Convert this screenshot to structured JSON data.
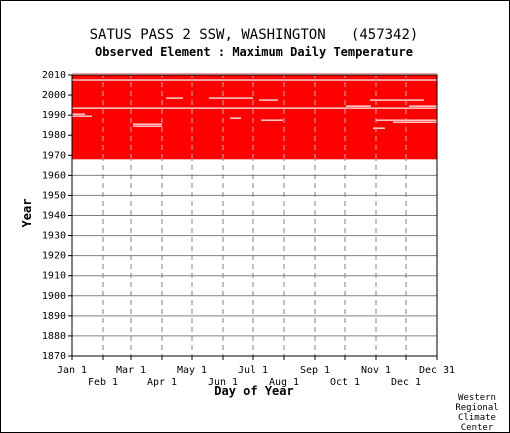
{
  "chart_data": {
    "type": "heatmap",
    "title": "SATUS PASS 2 SSW, WASHINGTON   (457342)",
    "subtitle": "Observed Element : Maximum Daily Temperature",
    "xlabel": "Day of Year",
    "ylabel": "Year",
    "x_range": [
      1,
      366
    ],
    "ylim": [
      1870,
      2010
    ],
    "y_ticks": [
      2010,
      2000,
      1990,
      1980,
      1970,
      1960,
      1950,
      1940,
      1930,
      1920,
      1910,
      1900,
      1890,
      1880,
      1870
    ],
    "x_ticks_top_row": [
      {
        "label": "Jan 1",
        "day": 1
      },
      {
        "label": "Mar 1",
        "day": 60
      },
      {
        "label": "May 1",
        "day": 121
      },
      {
        "label": "Jul 1",
        "day": 182
      },
      {
        "label": "Sep 1",
        "day": 244
      },
      {
        "label": "Nov 1",
        "day": 305
      },
      {
        "label": "Dec 31",
        "day": 366
      }
    ],
    "x_ticks_bottom_row": [
      {
        "label": "Feb 1",
        "day": 32
      },
      {
        "label": "Apr 1",
        "day": 91
      },
      {
        "label": "Jun 1",
        "day": 152
      },
      {
        "label": "Aug 1",
        "day": 213
      },
      {
        "label": "Oct 1",
        "day": 274
      },
      {
        "label": "Dec 1",
        "day": 335
      }
    ],
    "data_coverage": {
      "first_year": 1968,
      "last_year": 2010,
      "fill_color": "#ff0000",
      "missing_color": "#ffffff",
      "missing_segments": [
        {
          "year": 2010,
          "start_day": 1,
          "end_day": 366
        },
        {
          "year": 2007,
          "start_day": 1,
          "end_day": 366
        },
        {
          "year": 1993,
          "start_day": 1,
          "end_day": 366
        },
        {
          "year": 1998,
          "start_day": 95,
          "end_day": 112
        },
        {
          "year": 1998,
          "start_day": 138,
          "end_day": 182
        },
        {
          "year": 1997,
          "start_day": 188,
          "end_day": 207
        },
        {
          "year": 1997,
          "start_day": 299,
          "end_day": 353
        },
        {
          "year": 1994,
          "start_day": 275,
          "end_day": 300
        },
        {
          "year": 1994,
          "start_day": 338,
          "end_day": 366
        },
        {
          "year": 1990,
          "start_day": 1,
          "end_day": 14
        },
        {
          "year": 1989,
          "start_day": 1,
          "end_day": 21
        },
        {
          "year": 1988,
          "start_day": 159,
          "end_day": 170
        },
        {
          "year": 1987,
          "start_day": 305,
          "end_day": 366
        },
        {
          "year": 1987,
          "start_day": 190,
          "end_day": 212
        },
        {
          "year": 1986,
          "start_day": 322,
          "end_day": 366
        },
        {
          "year": 1985,
          "start_day": 62,
          "end_day": 91
        },
        {
          "year": 1984,
          "start_day": 62,
          "end_day": 91
        },
        {
          "year": 1983,
          "start_day": 302,
          "end_day": 314
        }
      ]
    },
    "grid": true
  },
  "credit": [
    "Western",
    "Regional",
    "Climate",
    "Center"
  ],
  "colors": {
    "data": "#ff0000",
    "grid": "#808080",
    "axis": "#000000"
  }
}
